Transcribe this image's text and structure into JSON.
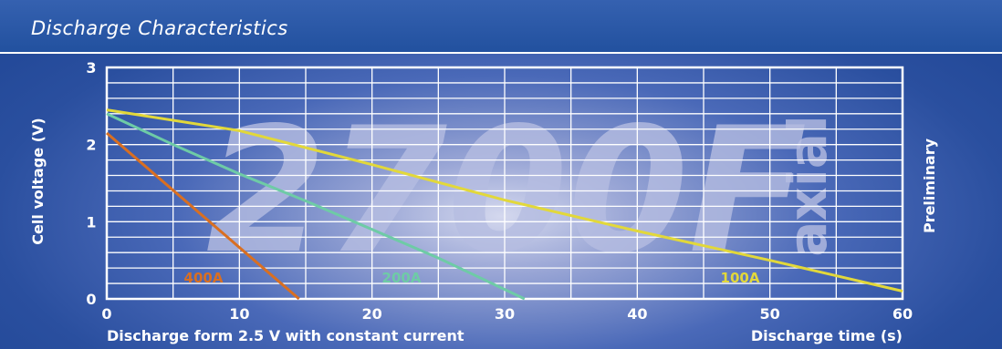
{
  "header": {
    "title": "Discharge Characteristics"
  },
  "watermark": {
    "main": "2700F",
    "sub": "axial"
  },
  "side_note": "Preliminary",
  "x_note": "Discharge form 2.5 V with constant current",
  "colors": {
    "header_bg": "#2a55a5",
    "grid": "#ffffff",
    "watermark": "#b5bde1",
    "series_400A": "#d96f21",
    "series_200A": "#6ecba6",
    "series_100A": "#e2d83a"
  },
  "chart_data": {
    "type": "line",
    "title": "",
    "xlabel": "Discharge time (s)",
    "ylabel": "Cell voltage (V)",
    "xlim": [
      0,
      60
    ],
    "ylim": [
      0,
      3
    ],
    "x_ticks": [
      0,
      10,
      20,
      30,
      40,
      50,
      60
    ],
    "y_ticks": [
      0,
      1,
      2,
      3
    ],
    "grid": true,
    "series": [
      {
        "name": "400A",
        "color": "#d96f21",
        "x": [
          0,
          14.5
        ],
        "y": [
          2.15,
          0
        ]
      },
      {
        "name": "200A",
        "color": "#6ecba6",
        "x": [
          0,
          5,
          10,
          15,
          20,
          25,
          31.5
        ],
        "y": [
          2.4,
          2.0,
          1.62,
          1.27,
          0.9,
          0.53,
          0
        ]
      },
      {
        "name": "100A",
        "color": "#e2d83a",
        "x": [
          0,
          10,
          20,
          30,
          40,
          50,
          60
        ],
        "y": [
          2.45,
          2.18,
          1.74,
          1.28,
          0.88,
          0.5,
          0.1
        ]
      }
    ]
  }
}
